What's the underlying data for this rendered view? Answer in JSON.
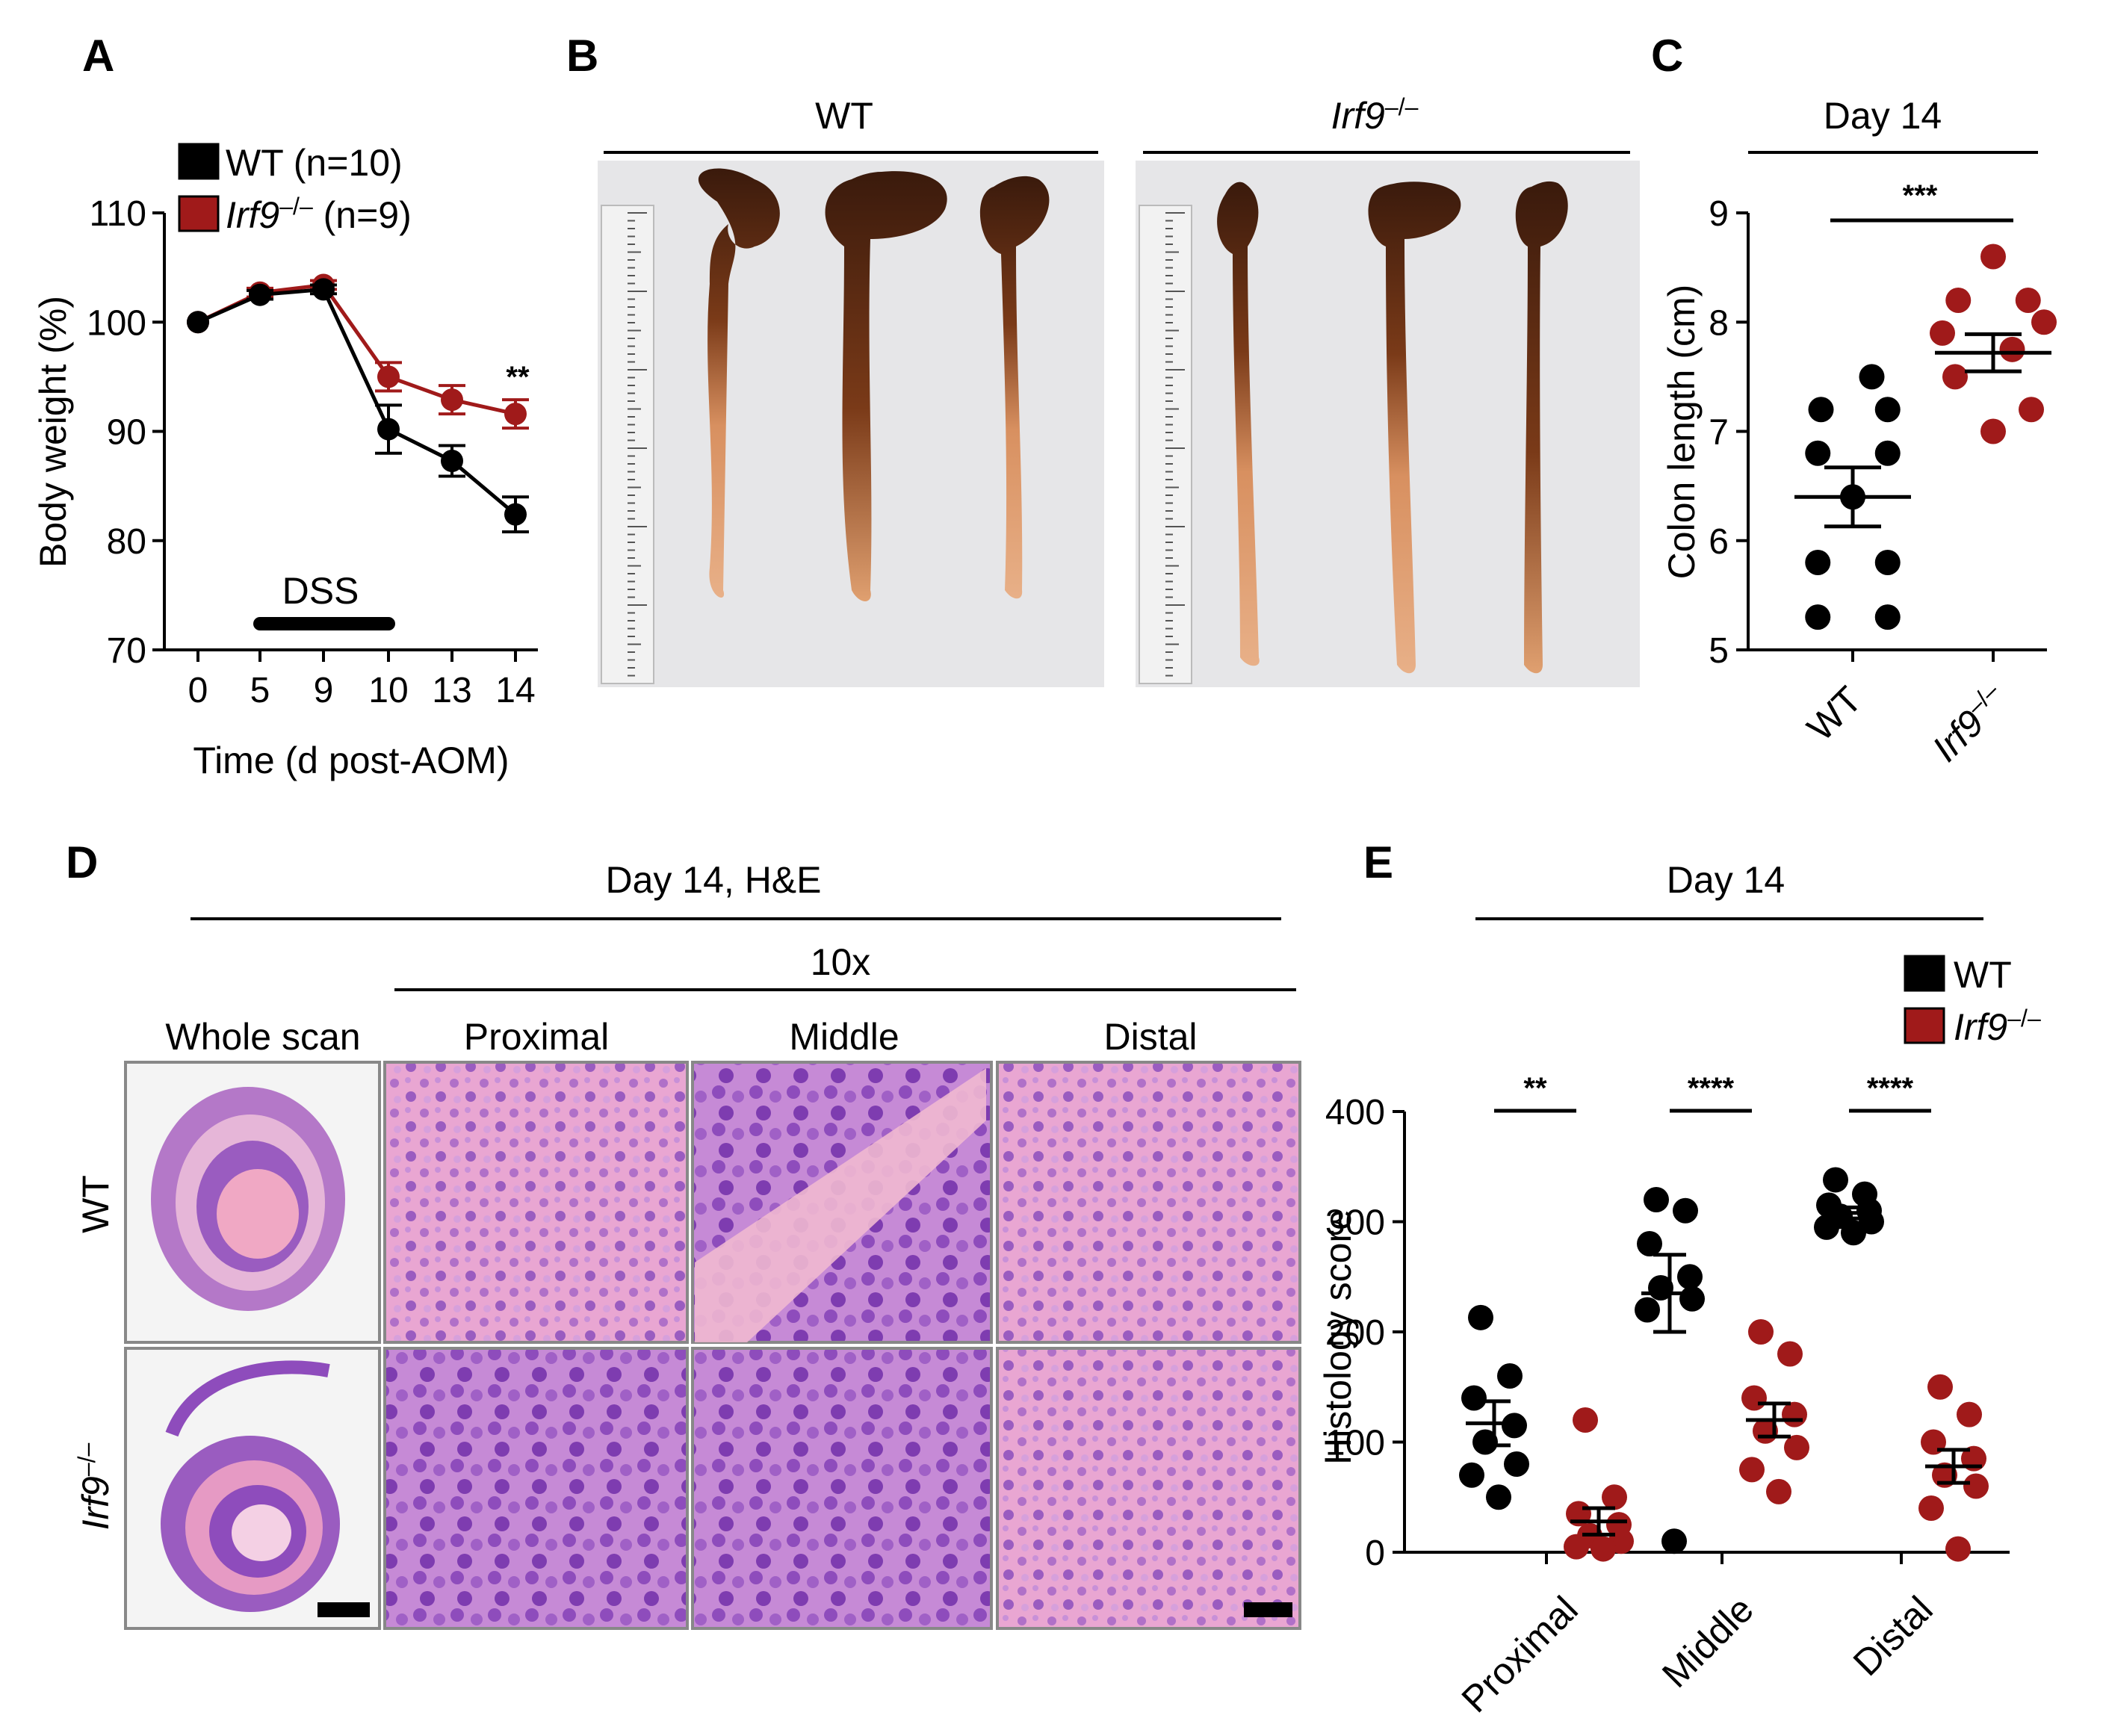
{
  "colors": {
    "wt": "#000000",
    "ko": "#a01a1a",
    "line": "#000000"
  },
  "panels": {
    "a": {
      "letter": "A"
    },
    "b": {
      "letter": "B",
      "group_wt": "WT",
      "group_ko": "Irf9",
      "group_ko_sup": "–/–"
    },
    "c": {
      "letter": "C"
    },
    "d": {
      "letter": "D",
      "title": "Day 14, H&E",
      "magnification": "10x",
      "columns": [
        "Whole scan",
        "Proximal",
        "Middle",
        "Distal"
      ],
      "row_wt": "WT",
      "row_ko": "Irf9",
      "row_ko_sup": "–/–"
    },
    "e": {
      "letter": "E"
    }
  },
  "chart_data": [
    {
      "panel": "A",
      "type": "line",
      "xlabel": "Time (d post-AOM)",
      "ylabel": "Body weight  (%)",
      "categories": [
        "0",
        "5",
        "9",
        "10",
        "13",
        "14"
      ],
      "ylim": [
        70,
        110
      ],
      "yticks": [
        70,
        80,
        90,
        100,
        110
      ],
      "annotation_bar": {
        "label": "DSS",
        "from": "5",
        "to": "10"
      },
      "significance": {
        "at": "14",
        "label": "**"
      },
      "legend": [
        {
          "name": "WT",
          "suffix": " (n=10)"
        },
        {
          "name": "Irf9",
          "sup": "–/–",
          "suffix": " (n=9)"
        }
      ],
      "series": [
        {
          "name": "WT",
          "values": [
            100,
            102.5,
            103,
            90.2,
            87.3,
            82.4
          ],
          "errors": [
            0,
            0.4,
            0.4,
            2.2,
            1.4,
            1.6
          ]
        },
        {
          "name": "Irf9–/–",
          "values": [
            100,
            102.7,
            103.4,
            95.0,
            92.9,
            91.6
          ],
          "errors": [
            0,
            0.4,
            0.4,
            1.3,
            1.3,
            1.3
          ]
        }
      ]
    },
    {
      "panel": "C",
      "type": "scatter",
      "title": "Day 14",
      "ylabel": "Colon length (cm)",
      "ylim": [
        5,
        9
      ],
      "yticks": [
        5,
        6,
        7,
        8,
        9
      ],
      "categories": [
        "WT",
        "Irf9–/–"
      ],
      "category_labels": [
        {
          "main": "WT"
        },
        {
          "main": "Irf9",
          "sup": "–/–"
        }
      ],
      "significance": {
        "label": "***"
      },
      "groups": [
        {
          "name": "WT",
          "mean": 6.4,
          "sem": 0.27,
          "points": [
            7.5,
            7.2,
            7.2,
            6.8,
            6.8,
            6.4,
            5.8,
            5.8,
            5.3,
            5.3
          ]
        },
        {
          "name": "Irf9–/–",
          "mean": 7.72,
          "sem": 0.17,
          "points": [
            8.6,
            8.2,
            8.2,
            8.0,
            7.9,
            7.75,
            7.5,
            7.2,
            7.0
          ]
        }
      ]
    },
    {
      "panel": "E",
      "type": "scatter",
      "title": "Day 14",
      "ylabel": "Histology score",
      "ylim": [
        0,
        400
      ],
      "yticks": [
        0,
        100,
        200,
        300,
        400
      ],
      "categories": [
        "Proximal",
        "Middle",
        "Distal"
      ],
      "legend": [
        {
          "name": "WT"
        },
        {
          "name": "Irf9",
          "sup": "–/–"
        }
      ],
      "significance": [
        "**",
        "****",
        "****"
      ],
      "series": [
        {
          "name": "WT",
          "groups": [
            {
              "mean": 117,
              "sem": 20,
              "points": [
                213,
                160,
                140,
                115,
                100,
                80,
                70,
                50
              ]
            },
            {
              "mean": 235,
              "sem": 35,
              "points": [
                320,
                310,
                280,
                250,
                240,
                230,
                220,
                10
              ]
            },
            {
              "mean": 308,
              "sem": 5,
              "points": [
                338,
                325,
                315,
                310,
                305,
                300,
                295,
                290
              ]
            }
          ]
        },
        {
          "name": "Irf9–/–",
          "groups": [
            {
              "mean": 28,
              "sem": 12,
              "points": [
                120,
                50,
                35,
                25,
                15,
                10,
                5,
                3
              ]
            },
            {
              "mean": 120,
              "sem": 15,
              "points": [
                200,
                180,
                140,
                125,
                110,
                95,
                75,
                55
              ]
            },
            {
              "mean": 78,
              "sem": 15,
              "points": [
                150,
                125,
                100,
                85,
                70,
                60,
                40,
                3
              ]
            }
          ]
        }
      ]
    }
  ]
}
